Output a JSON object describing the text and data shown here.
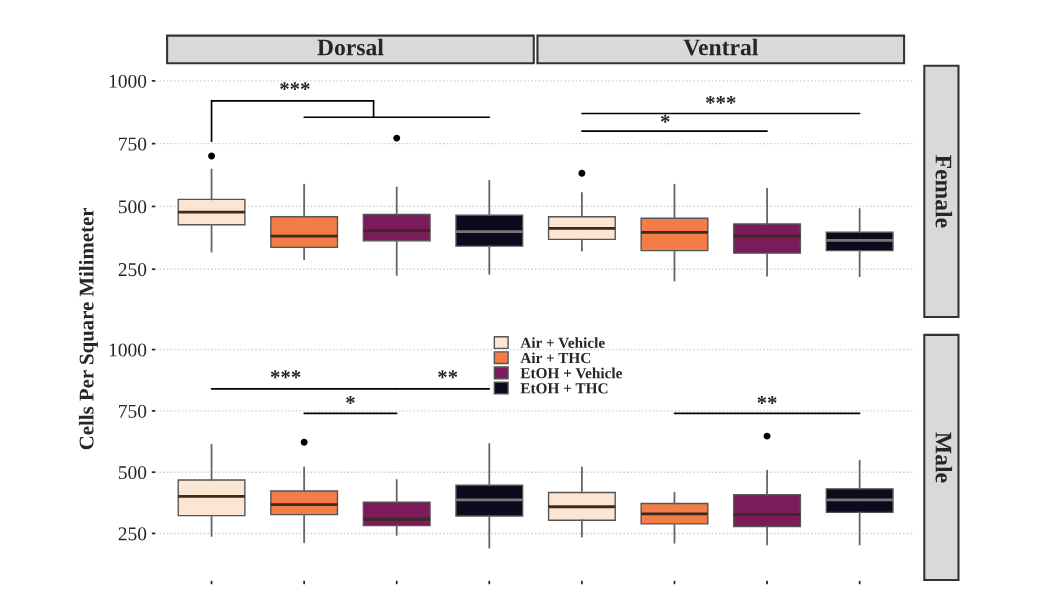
{
  "chart_data": [
    {
      "type": "box",
      "ylabel": "Cells Per Square Milimeter",
      "y2label": "Female",
      "categories": [
        null,
        null,
        null,
        null,
        null,
        null,
        null,
        null
      ],
      "ylim": [
        60,
        1060
      ],
      "yticks": [
        250,
        500,
        750,
        1000
      ],
      "grid": "y",
      "tick_labels": "y",
      "annotations": [
        "Dorsal",
        "Ventral",
        "***",
        "***",
        "*"
      ],
      "series": [
        {
          "color": "#fce5d2",
          "boxes": [
            {
              "low": 320,
              "q1": 427,
              "median": 477,
              "q3": 528,
              "high": 647,
              "outliers": [
                701
              ]
            },
            null,
            null,
            null,
            {
              "low": 324,
              "q1": 369,
              "median": 413,
              "q3": 459,
              "high": 554,
              "outliers": [
                632
              ]
            },
            null,
            null,
            null
          ]
        },
        {
          "color": "#f47c46",
          "boxes": [
            null,
            {
              "low": 290,
              "q1": 337,
              "median": 382,
              "q3": 459,
              "high": 587
            },
            null,
            null,
            null,
            {
              "low": 205,
              "q1": 324,
              "median": 397,
              "q3": 453,
              "high": 587
            },
            null,
            null
          ]
        },
        {
          "color": "#7b1b5c",
          "boxes": [
            null,
            null,
            {
              "low": 227,
              "q1": 363,
              "median": 404,
              "q3": 468,
              "high": 576,
              "outliers": [
                772
              ]
            },
            null,
            null,
            null,
            {
              "low": 224,
              "q1": 314,
              "median": 382,
              "q3": 430,
              "high": 571
            },
            null
          ]
        },
        {
          "color": "#0e0a1e",
          "boxes": [
            null,
            null,
            null,
            {
              "low": 231,
              "q1": 342,
              "median": 400,
              "q3": 465,
              "high": 603
            },
            null,
            null,
            null,
            {
              "low": 222,
              "q1": 324,
              "median": 365,
              "q3": 397,
              "high": 490
            }
          ]
        }
      ]
    },
    {
      "type": "box",
      "y2label": "Male",
      "categories": [
        null,
        null,
        null,
        null,
        null,
        null,
        null,
        null
      ],
      "ylim": [
        60,
        1060
      ],
      "yticks": [
        250,
        500,
        750,
        1000
      ],
      "grid": "y",
      "tick_labels": "y",
      "legend": "top",
      "annotations": [
        "***",
        "**",
        "*",
        "**"
      ],
      "series": [
        {
          "name": "Air + Vehicle",
          "color": "#fce5d2",
          "boxes": [
            {
              "low": 240,
              "q1": 323,
              "median": 401,
              "q3": 468,
              "high": 612
            },
            null,
            null,
            null,
            {
              "low": 237,
              "q1": 304,
              "median": 359,
              "q3": 417,
              "high": 519
            },
            null,
            null,
            null
          ]
        },
        {
          "name": "Air + THC",
          "color": "#f47c46",
          "boxes": [
            null,
            {
              "low": 214,
              "q1": 327,
              "median": 368,
              "q3": 423,
              "high": 519,
              "outliers": [
                622
              ]
            },
            null,
            null,
            null,
            {
              "low": 212,
              "q1": 289,
              "median": 330,
              "q3": 372,
              "high": 417
            },
            null,
            null
          ]
        },
        {
          "name": "EtOH + Vehicle",
          "color": "#7b1b5c",
          "boxes": [
            null,
            null,
            {
              "low": 244,
              "q1": 282,
              "median": 308,
              "q3": 378,
              "high": 468
            },
            null,
            null,
            null,
            {
              "low": 205,
              "q1": 278,
              "median": 327,
              "q3": 408,
              "high": 506,
              "outliers": [
                647
              ]
            },
            null
          ]
        },
        {
          "name": "EtOH + THC",
          "color": "#0e0a1e",
          "boxes": [
            null,
            null,
            null,
            {
              "low": 192,
              "q1": 321,
              "median": 387,
              "q3": 447,
              "high": 615
            },
            null,
            null,
            null,
            {
              "low": 205,
              "q1": 336,
              "median": 387,
              "q3": 432,
              "high": 547
            }
          ]
        }
      ]
    }
  ]
}
